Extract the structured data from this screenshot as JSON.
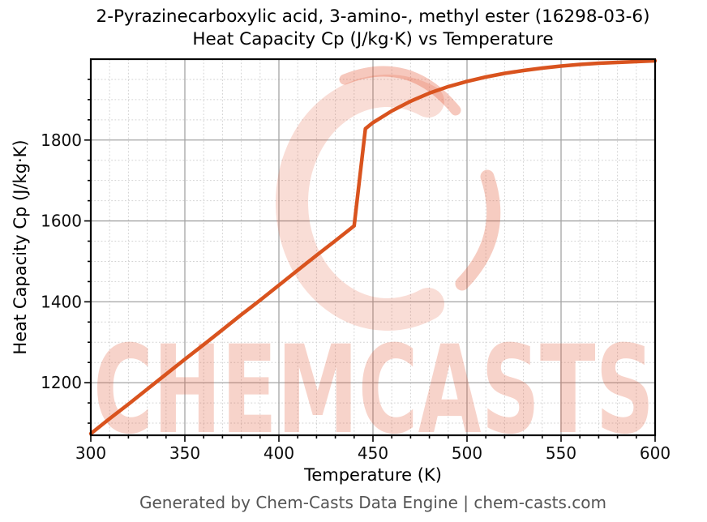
{
  "header": {
    "title_line1": "2-Pyrazinecarboxylic acid, 3-amino-, methyl ester (16298-03-6)",
    "title_line2": "Heat Capacity Cp (J/kg·K) vs Temperature"
  },
  "watermark": {
    "text": "CHEMCASTS",
    "logo": "chemcasts-c-swoosh",
    "color": "#e25532"
  },
  "footer": {
    "credit": "Generated by Chem-Casts Data Engine | chem-casts.com"
  },
  "chart_data": {
    "type": "line",
    "title": "2-Pyrazinecarboxylic acid, 3-amino-, methyl ester (16298-03-6)\nHeat Capacity Cp (J/kg·K) vs Temperature",
    "xlabel": "Temperature (K)",
    "ylabel": "Heat Capacity Cp (J/kg·K)",
    "xlim": [
      300,
      600
    ],
    "ylim": [
      1070,
      2000
    ],
    "x_major_ticks": [
      300,
      350,
      400,
      450,
      500,
      550,
      600
    ],
    "x_minor_step": 10,
    "y_major_ticks": [
      1200,
      1400,
      1600,
      1800
    ],
    "y_minor_step": 50,
    "grid": {
      "major": "solid",
      "minor": "dotted"
    },
    "legend": "none",
    "line_color": "#d9531e",
    "series": [
      {
        "name": "Heat Capacity Cp",
        "points": [
          [
            300,
            1074
          ],
          [
            310,
            1111
          ],
          [
            320,
            1147
          ],
          [
            330,
            1184
          ],
          [
            340,
            1221
          ],
          [
            350,
            1258
          ],
          [
            360,
            1294
          ],
          [
            370,
            1331
          ],
          [
            380,
            1368
          ],
          [
            390,
            1404
          ],
          [
            400,
            1441
          ],
          [
            410,
            1478
          ],
          [
            420,
            1515
          ],
          [
            430,
            1551
          ],
          [
            440,
            1588
          ],
          [
            446,
            1828
          ],
          [
            450,
            1843
          ],
          [
            460,
            1872
          ],
          [
            470,
            1896
          ],
          [
            480,
            1916
          ],
          [
            490,
            1932
          ],
          [
            500,
            1945
          ],
          [
            510,
            1956
          ],
          [
            520,
            1965
          ],
          [
            530,
            1972
          ],
          [
            540,
            1978
          ],
          [
            550,
            1983
          ],
          [
            560,
            1987
          ],
          [
            570,
            1990
          ],
          [
            580,
            1992
          ],
          [
            590,
            1994
          ],
          [
            600,
            1996
          ]
        ]
      }
    ]
  }
}
